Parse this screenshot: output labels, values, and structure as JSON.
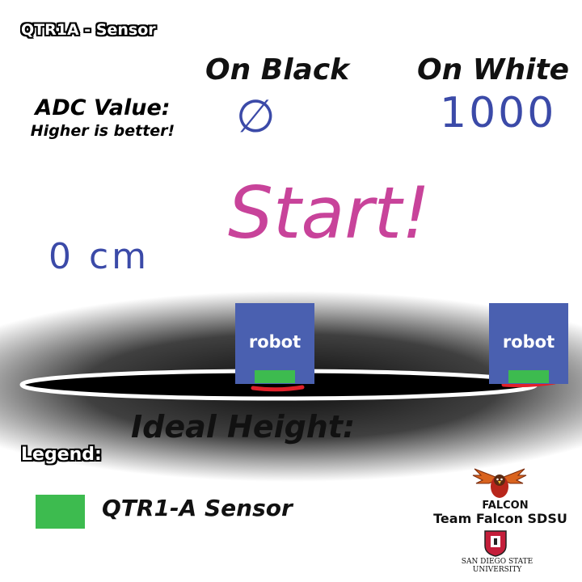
{
  "title": "QTR1A - Sensor",
  "columns": {
    "on_black": "On Black",
    "on_white": "On White"
  },
  "adc": {
    "label": "ADC Value:",
    "note": "Higher is better!",
    "black_value": "∅",
    "white_value": "1000"
  },
  "status": "Start!",
  "distance": "0 cm",
  "robots": [
    {
      "label": "robot"
    },
    {
      "label": "robot"
    }
  ],
  "ideal_height_label": "Ideal Height:",
  "legend": {
    "title": "Legend:",
    "items": [
      {
        "label": "QTR1-A Sensor",
        "color": "#3dbb4f"
      }
    ]
  },
  "branding": {
    "logo_text": "FALCON",
    "team": "Team Falcon SDSU",
    "university_line1": "SAN DIEGO STATE",
    "university_line2": "UNIVERSITY"
  },
  "colors": {
    "robot": "#4a60b0",
    "sensor": "#3dbb4f",
    "handwriting_blue": "#3b4aa8",
    "handwriting_pink": "#c8439a",
    "marker_red": "#e0202a"
  }
}
